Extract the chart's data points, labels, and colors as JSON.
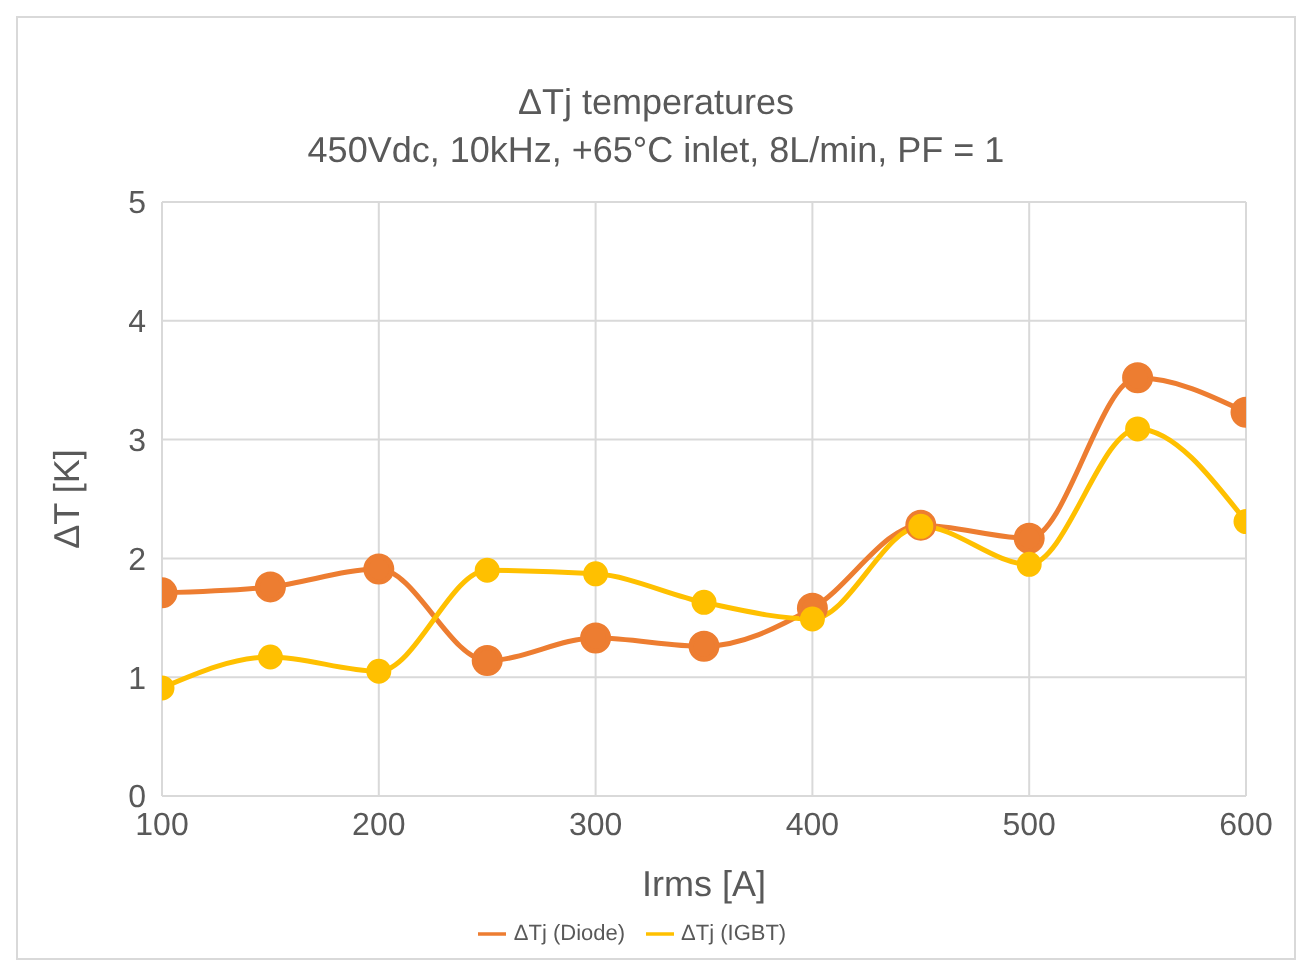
{
  "chart_data": {
    "type": "line",
    "title": "ΔTj temperatures",
    "subtitle": "450Vdc, 10kHz, +65°C inlet, 8L/min, PF = 1",
    "xlabel": "Irms [A]",
    "ylabel": "ΔT [K]",
    "x": [
      100,
      150,
      200,
      250,
      300,
      350,
      400,
      450,
      500,
      550,
      600
    ],
    "series": [
      {
        "name": "ΔTj (Diode)",
        "color": "#ed7d31",
        "values": [
          1.71,
          1.76,
          1.91,
          1.14,
          1.33,
          1.26,
          1.58,
          2.28,
          2.17,
          3.52,
          3.23
        ]
      },
      {
        "name": "ΔTj (IGBT)",
        "color": "#ffc000",
        "values": [
          0.91,
          1.17,
          1.05,
          1.9,
          1.87,
          1.63,
          1.49,
          2.27,
          1.95,
          3.09,
          2.31
        ]
      }
    ],
    "xlim": [
      100,
      600
    ],
    "xticks": [
      100,
      200,
      300,
      400,
      500,
      600
    ],
    "ylim": [
      0,
      5
    ],
    "yticks": [
      0,
      1,
      2,
      3,
      4,
      5
    ],
    "grid": true,
    "legend": "bottom",
    "marker": "circle",
    "line_style": "solid"
  }
}
